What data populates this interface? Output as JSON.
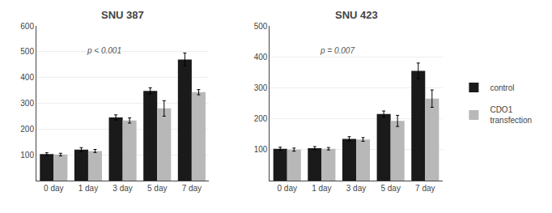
{
  "chart_data": [
    {
      "type": "bar",
      "title": "SNU 387",
      "categories": [
        "0 day",
        "1 day",
        "3 day",
        "5 day",
        "7 day"
      ],
      "series": [
        {
          "name": "control",
          "color": "#1a1a1a",
          "values": [
            103,
            120,
            245,
            348,
            470
          ],
          "errors": [
            5,
            8,
            10,
            12,
            25
          ]
        },
        {
          "name": "CDO1\ntransfection",
          "color": "#b8b8b8",
          "values": [
            101,
            115,
            233,
            280,
            343
          ],
          "errors": [
            5,
            6,
            10,
            30,
            10
          ]
        }
      ],
      "annotations": [
        {
          "text": "p < 0.001",
          "color": "#555555"
        }
      ],
      "ylim": [
        0,
        600
      ],
      "yticks": [
        100,
        200,
        300,
        400,
        500,
        600
      ]
    },
    {
      "type": "bar",
      "title": "SNU 423",
      "categories": [
        "0 day",
        "1 day",
        "3 day",
        "5 day",
        "7 day"
      ],
      "series": [
        {
          "name": "control",
          "color": "#1a1a1a",
          "values": [
            103,
            105,
            135,
            215,
            355
          ],
          "errors": [
            5,
            5,
            7,
            10,
            25
          ]
        },
        {
          "name": "CDO1\ntransfection",
          "color": "#b8b8b8",
          "values": [
            100,
            103,
            133,
            193,
            265
          ],
          "errors": [
            5,
            4,
            6,
            18,
            28
          ]
        }
      ],
      "annotations": [
        {
          "text": "p = 0.007",
          "color": "#555555"
        }
      ],
      "ylim": [
        0,
        500
      ],
      "yticks": [
        100,
        200,
        300,
        400,
        500
      ]
    }
  ]
}
